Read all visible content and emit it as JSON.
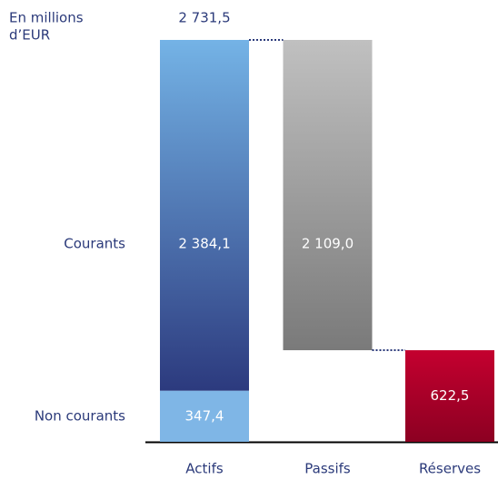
{
  "chart_data": {
    "type": "waterfall",
    "unit_label": [
      "En millions",
      "d’EUR"
    ],
    "categories": [
      "Actifs",
      "Passifs",
      "Réserves"
    ],
    "total": 2731.5,
    "total_label": "2 731,5",
    "series": [
      {
        "name": "Non courants",
        "values": [
          347.4,
          null,
          622.5
        ],
        "value_labels": [
          "347,4",
          null,
          "622,5"
        ],
        "colors": [
          [
            "#7fb6e6",
            "#7fb6e6"
          ],
          null,
          [
            "#c4002f",
            "#8c0022"
          ]
        ]
      },
      {
        "name": "Courants",
        "values": [
          2384.1,
          2109.0,
          null
        ],
        "value_labels": [
          "2 384,1",
          "2 109,0",
          null
        ],
        "colors": [
          [
            "#74b3e6",
            "#2c3a7e"
          ],
          [
            "#c0c0c0",
            "#7a7a7a"
          ],
          null
        ]
      }
    ]
  }
}
